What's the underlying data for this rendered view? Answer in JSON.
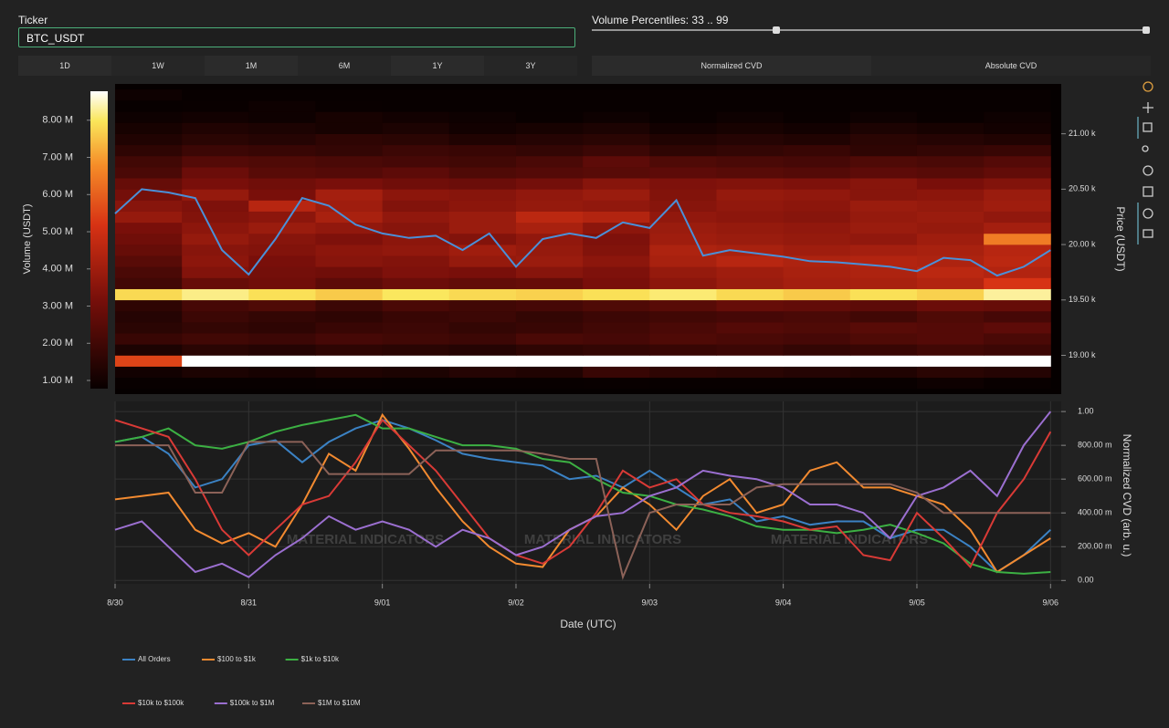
{
  "ticker_label": "Ticker",
  "ticker_value": "BTC_USDT",
  "percentile_label": "Volume Percentiles: 33 .. 99",
  "timeframes": [
    "1D",
    "1W",
    "1M",
    "6M",
    "1Y",
    "3Y"
  ],
  "modes": [
    "Normalized CVD",
    "Absolute CVD"
  ],
  "chart_data": [
    {
      "type": "heatmap",
      "y_title": "Price (USDT)",
      "colorbar_title": "Volume (USDT)",
      "xlim": [
        0,
        7.08
      ],
      "ylim": [
        18650,
        21450
      ],
      "yticks": [
        {
          "value": 19000,
          "label": "19.00 k"
        },
        {
          "value": 19500,
          "label": "19.50 k"
        },
        {
          "value": 20000,
          "label": "20.00 k"
        },
        {
          "value": 20500,
          "label": "20.50 k"
        },
        {
          "value": 21000,
          "label": "21.00 k"
        }
      ],
      "zlim": [
        0.78,
        8.78
      ],
      "zticks": [
        {
          "value": 1,
          "label": "1.00 M"
        },
        {
          "value": 2,
          "label": "2.00 M"
        },
        {
          "value": 3,
          "label": "3.00 M"
        },
        {
          "value": 4,
          "label": "4.00 M"
        },
        {
          "value": 5,
          "label": "5.00 M"
        },
        {
          "value": 6,
          "label": "6.00 M"
        },
        {
          "value": 7,
          "label": "7.00 M"
        },
        {
          "value": 8,
          "label": "8.00 M"
        }
      ],
      "xbins": [
        0,
        0.5,
        1,
        1.5,
        2,
        2.5,
        3,
        3.5,
        4,
        4.5,
        5,
        5.5,
        6,
        6.5,
        7
      ],
      "ybins": [
        18700,
        18800,
        18900,
        19000,
        19100,
        19200,
        19300,
        19400,
        19500,
        19600,
        19700,
        19800,
        19900,
        20000,
        20100,
        20200,
        20300,
        20400,
        20500,
        20600,
        20700,
        20800,
        20900,
        21000,
        21100,
        21200,
        21300,
        21400
      ],
      "z": [
        [
          0.6,
          0.7,
          0.6,
          0.8,
          0.7,
          0.6,
          0.7,
          0.8,
          0.7,
          0.6,
          0.7,
          0.8,
          0.9,
          0.8
        ],
        [
          1.0,
          1.2,
          1.1,
          1.3,
          1.2,
          1.4,
          1.3,
          1.8,
          1.6,
          1.5,
          1.4,
          1.3,
          1.5,
          1.4
        ],
        [
          5.5,
          8.8,
          8.8,
          8.8,
          8.8,
          8.8,
          8.8,
          8.8,
          8.8,
          8.8,
          8.8,
          8.8,
          8.8,
          8.8
        ],
        [
          1.2,
          1.5,
          1.4,
          1.6,
          1.5,
          1.4,
          1.6,
          1.7,
          1.8,
          1.9,
          1.7,
          1.8,
          2.0,
          1.9
        ],
        [
          1.8,
          2.0,
          1.9,
          2.1,
          2.0,
          1.9,
          2.2,
          2.1,
          2.3,
          2.2,
          2.1,
          2.3,
          2.4,
          2.2
        ],
        [
          1.5,
          1.7,
          1.6,
          1.8,
          1.9,
          1.7,
          1.8,
          2.0,
          2.2,
          2.4,
          2.3,
          2.5,
          2.4,
          2.6
        ],
        [
          1.4,
          1.9,
          1.7,
          1.6,
          1.8,
          1.9,
          1.7,
          1.9,
          2.0,
          2.1,
          2.2,
          2.0,
          2.3,
          2.1
        ],
        [
          1.6,
          2.1,
          2.3,
          1.9,
          2.2,
          2.0,
          2.1,
          2.3,
          2.5,
          2.8,
          2.7,
          2.6,
          2.9,
          2.8
        ],
        [
          7.8,
          8.2,
          7.9,
          7.6,
          8.0,
          7.8,
          7.7,
          7.9,
          8.1,
          7.8,
          7.6,
          7.9,
          7.7,
          8.3
        ],
        [
          2.0,
          2.8,
          3.0,
          2.6,
          2.9,
          2.7,
          2.8,
          3.2,
          3.6,
          3.9,
          4.1,
          4.2,
          4.4,
          5.2
        ],
        [
          2.2,
          3.4,
          3.1,
          3.0,
          3.3,
          3.2,
          3.5,
          3.3,
          3.8,
          4.0,
          4.2,
          4.3,
          4.6,
          4.4
        ],
        [
          2.5,
          3.6,
          3.2,
          3.5,
          3.4,
          3.8,
          3.9,
          3.6,
          4.2,
          4.5,
          4.3,
          4.4,
          4.3,
          4.6
        ],
        [
          2.8,
          3.5,
          3.4,
          3.6,
          3.7,
          4.0,
          3.8,
          3.4,
          4.3,
          4.2,
          4.0,
          4.1,
          4.2,
          4.5
        ],
        [
          3.0,
          3.8,
          3.5,
          3.3,
          3.6,
          3.4,
          3.7,
          3.3,
          4.0,
          3.9,
          3.8,
          3.7,
          4.0,
          6.5
        ],
        [
          3.2,
          3.6,
          3.9,
          3.7,
          3.5,
          3.9,
          4.2,
          3.6,
          3.9,
          3.8,
          3.7,
          3.9,
          3.8,
          4.1
        ],
        [
          3.8,
          3.4,
          3.6,
          4.2,
          3.7,
          3.9,
          4.6,
          4.4,
          3.7,
          3.6,
          3.5,
          3.8,
          3.9,
          3.7
        ],
        [
          3.5,
          3.3,
          4.5,
          4.0,
          3.4,
          3.6,
          3.8,
          3.7,
          3.5,
          3.7,
          3.6,
          3.9,
          3.8,
          4.0
        ],
        [
          3.1,
          3.8,
          3.2,
          4.1,
          3.6,
          3.5,
          3.7,
          3.9,
          3.4,
          3.8,
          3.7,
          3.5,
          3.6,
          3.9
        ],
        [
          2.8,
          3.2,
          3.0,
          3.2,
          3.0,
          2.9,
          3.1,
          3.5,
          3.3,
          3.4,
          3.3,
          3.5,
          3.2,
          3.4
        ],
        [
          2.2,
          2.9,
          2.5,
          2.4,
          2.6,
          2.3,
          2.4,
          2.5,
          2.6,
          2.5,
          2.4,
          2.6,
          2.5,
          2.7
        ],
        [
          2.0,
          2.4,
          2.3,
          2.2,
          2.1,
          2.0,
          2.2,
          2.6,
          2.3,
          2.2,
          2.1,
          2.3,
          2.2,
          2.4
        ],
        [
          1.6,
          1.9,
          1.8,
          1.7,
          1.9,
          1.8,
          1.7,
          1.9,
          1.6,
          1.7,
          1.8,
          1.6,
          1.7,
          1.8
        ],
        [
          1.3,
          1.5,
          1.4,
          1.6,
          1.5,
          1.3,
          1.4,
          1.5,
          1.3,
          1.4,
          1.3,
          1.5,
          1.4,
          1.3
        ],
        [
          1.1,
          1.3,
          1.2,
          1.1,
          1.2,
          1.0,
          1.1,
          1.2,
          1.0,
          1.1,
          1.0,
          1.2,
          1.1,
          1.0
        ],
        [
          0.9,
          1.0,
          0.9,
          1.1,
          1.0,
          0.9,
          0.8,
          0.9,
          0.8,
          0.9,
          0.8,
          0.9,
          0.8,
          0.9
        ],
        [
          0.7,
          0.8,
          0.9,
          0.8,
          0.7,
          0.6,
          0.7,
          0.6,
          0.7,
          0.6,
          0.7,
          0.6,
          0.7,
          0.6
        ],
        [
          0.9,
          0.6,
          0.5,
          0.6,
          0.5,
          0.6,
          0.5,
          0.4,
          0.5,
          0.4,
          0.5,
          0.4,
          0.5,
          0.4
        ]
      ],
      "price": {
        "color": "#4a90d9",
        "x": [
          0,
          0.2,
          0.4,
          0.6,
          0.8,
          1,
          1.2,
          1.4,
          1.6,
          1.8,
          2,
          2.2,
          2.4,
          2.6,
          2.8,
          3,
          3.2,
          3.4,
          3.6,
          3.8,
          4,
          4.2,
          4.4,
          4.6,
          4.8,
          5,
          5.2,
          5.4,
          5.6,
          5.8,
          6,
          6.2,
          6.4,
          6.6,
          6.8,
          7
        ],
        "values": [
          20280,
          20500,
          20470,
          20420,
          19950,
          19730,
          20050,
          20420,
          20350,
          20180,
          20100,
          20060,
          20080,
          19950,
          20100,
          19800,
          20050,
          20100,
          20060,
          20200,
          20150,
          20400,
          19900,
          19950,
          19920,
          19890,
          19850,
          19840,
          19820,
          19800,
          19760,
          19880,
          19860,
          19720,
          19800,
          19950
        ]
      }
    },
    {
      "type": "line",
      "x_title": "Date (UTC)",
      "y_title": "Normalized CVD (arb. u.)",
      "watermark": "MATERIAL INDICATORS",
      "grid": true,
      "xlim": [
        0,
        7.08
      ],
      "ylim": [
        -0.02,
        1.06
      ],
      "xticks": [
        {
          "value": 0,
          "label": "8/30"
        },
        {
          "value": 1,
          "label": "8/31"
        },
        {
          "value": 2,
          "label": "9/01"
        },
        {
          "value": 3,
          "label": "9/02"
        },
        {
          "value": 4,
          "label": "9/03"
        },
        {
          "value": 5,
          "label": "9/04"
        },
        {
          "value": 6,
          "label": "9/05"
        },
        {
          "value": 7,
          "label": "9/06"
        }
      ],
      "yticks": [
        {
          "value": 0,
          "label": "0.00"
        },
        {
          "value": 0.2,
          "label": "200.00 m"
        },
        {
          "value": 0.4,
          "label": "400.00 m"
        },
        {
          "value": 0.6,
          "label": "600.00 m"
        },
        {
          "value": 0.8,
          "label": "800.00 m"
        },
        {
          "value": 1,
          "label": "1.00"
        }
      ],
      "x": [
        0,
        0.2,
        0.4,
        0.6,
        0.8,
        1,
        1.2,
        1.4,
        1.6,
        1.8,
        2,
        2.2,
        2.4,
        2.6,
        2.8,
        3,
        3.2,
        3.4,
        3.6,
        3.8,
        4,
        4.2,
        4.4,
        4.6,
        4.8,
        5,
        5.2,
        5.4,
        5.6,
        5.8,
        6,
        6.2,
        6.4,
        6.6,
        6.8,
        7
      ],
      "series": [
        {
          "name": "All Orders",
          "color": "#3b82c4",
          "values": [
            0.82,
            0.85,
            0.75,
            0.55,
            0.6,
            0.8,
            0.83,
            0.7,
            0.82,
            0.9,
            0.95,
            0.9,
            0.83,
            0.75,
            0.72,
            0.7,
            0.68,
            0.6,
            0.62,
            0.55,
            0.65,
            0.55,
            0.45,
            0.48,
            0.35,
            0.38,
            0.33,
            0.35,
            0.35,
            0.25,
            0.3,
            0.3,
            0.2,
            0.05,
            0.15,
            0.3
          ]
        },
        {
          "name": "$100 to $1k",
          "color": "#f28a30",
          "values": [
            0.48,
            0.5,
            0.52,
            0.3,
            0.22,
            0.28,
            0.2,
            0.45,
            0.75,
            0.65,
            0.98,
            0.78,
            0.55,
            0.35,
            0.2,
            0.1,
            0.08,
            0.3,
            0.38,
            0.55,
            0.45,
            0.3,
            0.5,
            0.6,
            0.4,
            0.45,
            0.65,
            0.7,
            0.55,
            0.55,
            0.5,
            0.45,
            0.3,
            0.05,
            0.15,
            0.25
          ]
        },
        {
          "name": "$1k to $10k",
          "color": "#3cb043",
          "values": [
            0.82,
            0.85,
            0.9,
            0.8,
            0.78,
            0.82,
            0.88,
            0.92,
            0.95,
            0.98,
            0.9,
            0.9,
            0.85,
            0.8,
            0.8,
            0.78,
            0.72,
            0.7,
            0.6,
            0.52,
            0.5,
            0.45,
            0.42,
            0.38,
            0.32,
            0.3,
            0.3,
            0.28,
            0.3,
            0.33,
            0.28,
            0.22,
            0.1,
            0.05,
            0.04,
            0.05
          ]
        },
        {
          "name": "$10k to $100k",
          "color": "#d93a36",
          "values": [
            0.95,
            0.9,
            0.85,
            0.6,
            0.3,
            0.15,
            0.3,
            0.45,
            0.5,
            0.7,
            0.95,
            0.8,
            0.65,
            0.45,
            0.25,
            0.15,
            0.1,
            0.2,
            0.4,
            0.65,
            0.55,
            0.6,
            0.45,
            0.4,
            0.38,
            0.35,
            0.3,
            0.32,
            0.15,
            0.12,
            0.4,
            0.25,
            0.08,
            0.4,
            0.6,
            0.88
          ]
        },
        {
          "name": "$100k to $1M",
          "color": "#9b6fd0",
          "values": [
            0.3,
            0.35,
            0.2,
            0.05,
            0.1,
            0.02,
            0.15,
            0.25,
            0.38,
            0.3,
            0.35,
            0.3,
            0.2,
            0.3,
            0.25,
            0.15,
            0.2,
            0.3,
            0.38,
            0.4,
            0.5,
            0.55,
            0.65,
            0.62,
            0.6,
            0.55,
            0.45,
            0.45,
            0.4,
            0.25,
            0.5,
            0.55,
            0.65,
            0.5,
            0.8,
            1.0
          ]
        },
        {
          "name": "$1M to $10M",
          "color": "#8c6258",
          "values": [
            0.8,
            0.8,
            0.8,
            0.52,
            0.52,
            0.82,
            0.82,
            0.82,
            0.63,
            0.63,
            0.63,
            0.63,
            0.77,
            0.77,
            0.77,
            0.77,
            0.75,
            0.72,
            0.72,
            0.02,
            0.4,
            0.45,
            0.45,
            0.45,
            0.55,
            0.57,
            0.57,
            0.57,
            0.57,
            0.57,
            0.52,
            0.4,
            0.4,
            0.4,
            0.4,
            0.4
          ]
        }
      ]
    }
  ]
}
